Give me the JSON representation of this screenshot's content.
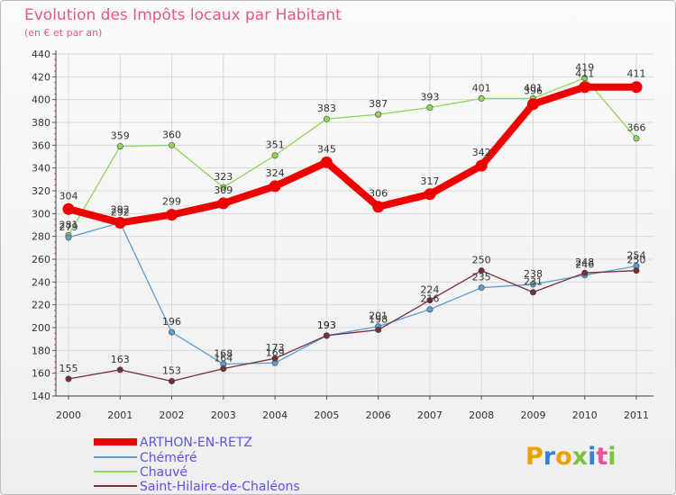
{
  "chart_data": {
    "type": "line",
    "title": "Evolution des Impôts locaux par Habitant",
    "subtitle": "(en € et par an)",
    "x": [
      "2000",
      "2001",
      "2002",
      "2003",
      "2004",
      "2005",
      "2006",
      "2007",
      "2008",
      "2009",
      "2010",
      "2011"
    ],
    "ylim": [
      140,
      440
    ],
    "yticks": [
      140,
      160,
      180,
      200,
      220,
      240,
      260,
      280,
      300,
      320,
      340,
      360,
      380,
      400,
      420,
      440
    ],
    "grid": true,
    "legend_position": "bottom-left",
    "series": [
      {
        "name": "Chauvé",
        "color": "#8fd65a",
        "width": 1.3,
        "values": [
          281,
          359,
          360,
          323,
          351,
          383,
          387,
          393,
          401,
          401,
          419,
          366
        ]
      },
      {
        "name": "Chéméré",
        "color": "#5b9ed6",
        "width": 1.3,
        "values": [
          279,
          292,
          196,
          168,
          169,
          193,
          201,
          216,
          235,
          238,
          246,
          254
        ]
      },
      {
        "name": "Saint-Hilaire-de-Chaléons",
        "color": "#7a2e38",
        "width": 1.3,
        "values": [
          155,
          163,
          153,
          164,
          173,
          193,
          198,
          224,
          250,
          231,
          248,
          250
        ]
      },
      {
        "name": "ARTHON-EN-RETZ",
        "color": "#ee0000",
        "width": 8,
        "values": [
          304,
          292,
          299,
          309,
          324,
          345,
          306,
          317,
          342,
          396,
          411,
          411
        ]
      }
    ]
  },
  "legend": [
    {
      "name": "ARTHON-EN-RETZ",
      "color": "#ee0000"
    },
    {
      "name": "Chéméré",
      "color": "#5b9ed6"
    },
    {
      "name": "Chauvé",
      "color": "#8fd65a"
    },
    {
      "name": "Saint-Hilaire-de-Chaléons",
      "color": "#7a2e38"
    }
  ],
  "logo": "Proxiti",
  "colors": {
    "title": "#e9587a",
    "grid": "#d9d9d9",
    "legend_text": "#5b56e6"
  }
}
